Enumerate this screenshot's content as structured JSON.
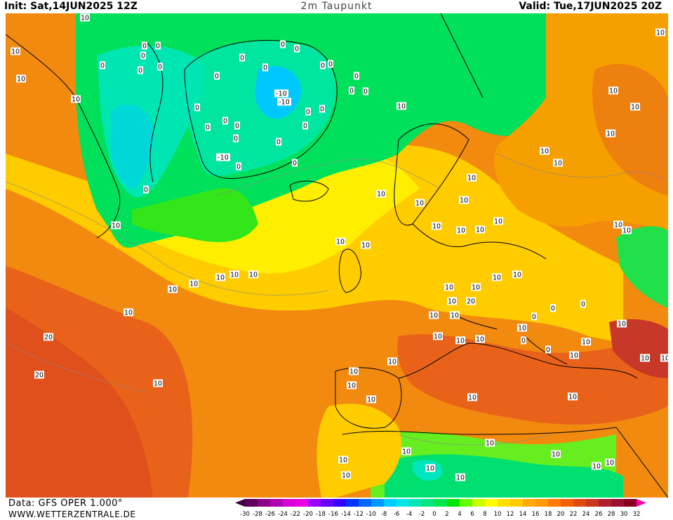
{
  "header": {
    "init": "Init: Sat,14JUN2025 12Z",
    "title": "2m Taupunkt",
    "valid": "Valid: Tue,17JUN2025 20Z"
  },
  "footer": {
    "data_source": "Data: GFS OPER 1.000°",
    "website": "WWW.WETTERZENTRALE.DE"
  },
  "legend": {
    "ticks": [
      "-30",
      "-28",
      "-26",
      "-24",
      "-22",
      "-20",
      "-18",
      "-16",
      "-14",
      "-12",
      "-10",
      "-8",
      "-6",
      "-4",
      "-2",
      "0",
      "2",
      "4",
      "6",
      "8",
      "10",
      "12",
      "14",
      "16",
      "18",
      "20",
      "22",
      "24",
      "26",
      "28",
      "30",
      "32"
    ],
    "colors": [
      "#3d003d",
      "#5e005e",
      "#8a008a",
      "#b000b0",
      "#d600d6",
      "#e600e6",
      "#9900ff",
      "#6600ff",
      "#3300ff",
      "#0033ff",
      "#0066ff",
      "#0099ff",
      "#00ccff",
      "#00e6e6",
      "#00e6b3",
      "#00e680",
      "#00e64d",
      "#00e600",
      "#66ff00",
      "#ccff00",
      "#ffff00",
      "#ffe000",
      "#ffcc00",
      "#ffaa00",
      "#ff9900",
      "#ff7a00",
      "#f26000",
      "#e04a10",
      "#c83820",
      "#b02030",
      "#9a1030",
      "#880020",
      "#ff00aa"
    ]
  },
  "map": {
    "contour_labels": [
      "10",
      "10",
      "10",
      "0",
      "0",
      "0",
      "0",
      "0",
      "0",
      "0",
      "0",
      "0",
      "0",
      "0",
      "0",
      "0",
      "-10",
      "-10",
      "-10",
      "0",
      "0",
      "0",
      "0",
      "0",
      "0",
      "0",
      "0",
      "0",
      "0",
      "0",
      "0",
      "0",
      "0",
      "0",
      "10",
      "10",
      "10",
      "10",
      "10",
      "10",
      "10",
      "10",
      "10",
      "10",
      "10",
      "10",
      "10",
      "10",
      "10",
      "10",
      "10",
      "10",
      "10",
      "10",
      "10",
      "10",
      "10",
      "10",
      "10",
      "10",
      "10",
      "10",
      "10",
      "10",
      "10",
      "10",
      "20",
      "20",
      "20",
      "10",
      "10",
      "10",
      "10",
      "10",
      "10",
      "10",
      "0",
      "0",
      "0",
      "0",
      "0",
      "10",
      "10",
      "10",
      "10",
      "10",
      "10",
      "10",
      "10",
      "10",
      "10",
      "10",
      "10",
      "10",
      "10",
      "10",
      "10",
      "10",
      "10",
      "10",
      "10"
    ]
  }
}
